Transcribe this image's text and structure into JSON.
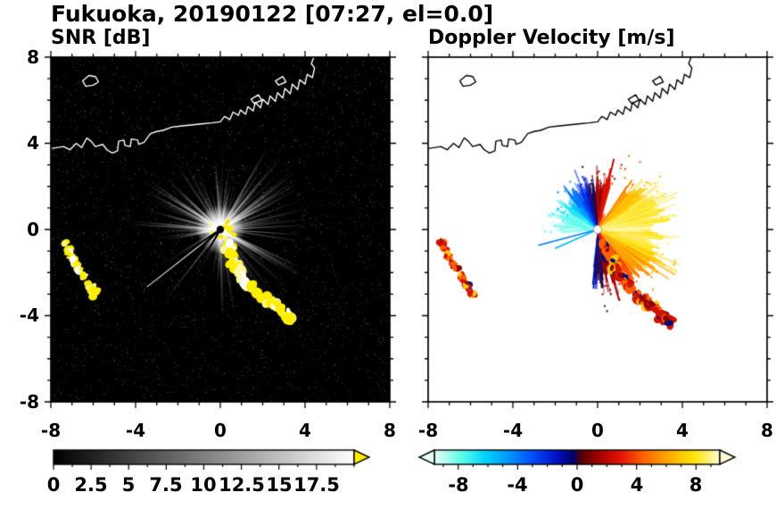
{
  "header": {
    "title": "Fukuoka, 20190122 [07:27, el=0.0]"
  },
  "panels": {
    "snr": {
      "title": "SNR [dB]"
    },
    "velocity": {
      "title": "Doppler Velocity [m/s]"
    }
  },
  "axes": {
    "xlim": [
      -8,
      8
    ],
    "ylim": [
      -8,
      8
    ],
    "xticks": [
      "-8",
      "-4",
      "0",
      "4",
      "8"
    ],
    "yticks": [
      "8",
      "4",
      "0",
      "-4",
      "-8"
    ],
    "minor_step": 1,
    "major_step": 4
  },
  "colorbars": {
    "snr": {
      "min": 0,
      "max": 20,
      "minor_step": 1.25,
      "ticks": [
        "0",
        "2.5",
        "5",
        "7.5",
        "10",
        "12.5",
        "15",
        "17.5"
      ],
      "tick_values": [
        0,
        2.5,
        5,
        7.5,
        10,
        12.5,
        15,
        17.5
      ],
      "over_color": "#ffee00",
      "stops": [
        [
          0,
          "#000000"
        ],
        [
          20,
          "#ffffff"
        ]
      ]
    },
    "velocity": {
      "min": -9.6,
      "max": 9.6,
      "minor_step": 1,
      "ticks": [
        "-8",
        "-4",
        "0",
        "4",
        "8"
      ],
      "tick_values": [
        -8,
        -4,
        0,
        4,
        8
      ],
      "stops": [
        [
          -9.6,
          "#e6fffa"
        ],
        [
          -7.8,
          "#5cffe8"
        ],
        [
          -6.2,
          "#00d2ff"
        ],
        [
          -4.6,
          "#0096ff"
        ],
        [
          -3.0,
          "#004cff"
        ],
        [
          -1.5,
          "#0014cc"
        ],
        [
          -0.25,
          "#000066"
        ],
        [
          0.25,
          "#550000"
        ],
        [
          1.5,
          "#a80000"
        ],
        [
          3.0,
          "#e81600"
        ],
        [
          4.6,
          "#ff6a00"
        ],
        [
          6.2,
          "#ffae00"
        ],
        [
          7.8,
          "#ffe400"
        ],
        [
          9.6,
          "#fffbd8"
        ]
      ]
    }
  },
  "coastline": {
    "main": [
      [
        -8.05,
        3.75
      ],
      [
        -7.4,
        3.85
      ],
      [
        -7.1,
        3.7
      ],
      [
        -6.8,
        4.0
      ],
      [
        -6.55,
        3.8
      ],
      [
        -6.3,
        4.25
      ],
      [
        -6.1,
        4.1
      ],
      [
        -5.9,
        3.85
      ],
      [
        -5.55,
        3.95
      ],
      [
        -5.35,
        3.7
      ],
      [
        -5.1,
        3.55
      ],
      [
        -4.85,
        3.65
      ],
      [
        -4.8,
        4.1
      ],
      [
        -4.55,
        4.15
      ],
      [
        -4.5,
        3.9
      ],
      [
        -4.25,
        3.85
      ],
      [
        -4.2,
        4.2
      ],
      [
        -3.9,
        4.15
      ],
      [
        -3.85,
        3.95
      ],
      [
        -3.6,
        4.05
      ],
      [
        -3.3,
        4.45
      ],
      [
        -3.0,
        4.55
      ],
      [
        -2.7,
        4.6
      ],
      [
        -2.3,
        4.75
      ],
      [
        -1.9,
        4.8
      ],
      [
        -1.4,
        4.85
      ],
      [
        -0.9,
        4.9
      ],
      [
        -0.4,
        4.95
      ],
      [
        0.0,
        5.0
      ],
      [
        0.2,
        5.25
      ],
      [
        0.45,
        5.1
      ],
      [
        0.6,
        5.45
      ],
      [
        0.85,
        5.3
      ],
      [
        0.95,
        5.55
      ],
      [
        1.2,
        5.35
      ],
      [
        1.3,
        5.7
      ],
      [
        1.55,
        5.5
      ],
      [
        1.65,
        5.9
      ],
      [
        1.9,
        5.65
      ],
      [
        2.0,
        6.05
      ],
      [
        2.25,
        5.8
      ],
      [
        2.35,
        6.2
      ],
      [
        2.6,
        5.95
      ],
      [
        2.7,
        6.35
      ],
      [
        2.95,
        6.1
      ],
      [
        3.05,
        6.55
      ],
      [
        3.3,
        6.3
      ],
      [
        3.4,
        6.75
      ],
      [
        3.65,
        6.5
      ],
      [
        3.75,
        6.95
      ],
      [
        4.0,
        6.75
      ],
      [
        4.1,
        7.2
      ],
      [
        4.35,
        7.05
      ],
      [
        4.45,
        7.5
      ],
      [
        4.3,
        7.7
      ],
      [
        4.45,
        8.1
      ]
    ],
    "island": [
      [
        -6.5,
        6.9
      ],
      [
        -6.2,
        7.15
      ],
      [
        -5.9,
        7.1
      ],
      [
        -5.75,
        6.85
      ],
      [
        -6.0,
        6.7
      ],
      [
        -6.35,
        6.65
      ]
    ],
    "structures": [
      [
        [
          1.45,
          6.05
        ],
        [
          1.8,
          6.25
        ],
        [
          1.95,
          6.0
        ],
        [
          1.6,
          5.85
        ]
      ],
      [
        [
          2.6,
          6.9
        ],
        [
          2.95,
          7.1
        ],
        [
          3.1,
          6.85
        ],
        [
          2.75,
          6.7
        ]
      ]
    ]
  },
  "chart_data": [
    {
      "type": "heatmap",
      "title": "SNR [dB]",
      "xlabel": "",
      "ylabel": "",
      "xlim": [
        -8,
        8
      ],
      "ylim": [
        -8,
        8
      ],
      "background": "#000000",
      "coast_color": "#ffffff",
      "radar_site": [
        0,
        0
      ],
      "clutter_rays": {
        "count": 230,
        "min_len": 1.2,
        "max_len": 4.6,
        "shadow_angles": [
          214,
          222,
          240
        ]
      },
      "echo_arc": [
        [
          0.35,
          -0.85
        ],
        [
          0.7,
          -1.5
        ],
        [
          1.05,
          -2.15
        ],
        [
          1.5,
          -2.75
        ],
        [
          2.1,
          -3.25
        ],
        [
          2.6,
          -3.55
        ],
        [
          3.0,
          -3.95
        ],
        [
          3.35,
          -4.3
        ]
      ],
      "west_echoes": [
        [
          -7.35,
          -0.65
        ],
        [
          -7.05,
          -1.25
        ],
        [
          -6.7,
          -1.75
        ],
        [
          -6.25,
          -2.55
        ],
        [
          -5.95,
          -3.0
        ]
      ],
      "echo_color": "#ffee00",
      "colorbar_range": [
        0,
        17.5
      ]
    },
    {
      "type": "heatmap",
      "title": "Doppler Velocity [m/s]",
      "xlabel": "",
      "ylabel": "",
      "xlim": [
        -8,
        8
      ],
      "ylim": [
        -8,
        8
      ],
      "background": "#ffffff",
      "coast_color": "#000000",
      "radar_site": [
        0,
        0
      ],
      "fan": {
        "theta_start": -96,
        "theta_end": 186,
        "flow_dir": 5,
        "vmax": 8.6,
        "base_r": 1.6,
        "spike_r": 1.5,
        "shape_amp": 0.3,
        "shape_dir": 0,
        "notch": [
          56,
          74
        ]
      },
      "thin_rays": [
        {
          "angle": 195,
          "len": 2.9,
          "v": -4
        },
        {
          "angle": 204,
          "len": 2.2,
          "v": -5.5
        }
      ],
      "echo_arc": [
        [
          0.35,
          -0.85
        ],
        [
          0.7,
          -1.5
        ],
        [
          1.05,
          -2.15
        ],
        [
          1.5,
          -2.75
        ],
        [
          2.1,
          -3.25
        ],
        [
          2.6,
          -3.55
        ],
        [
          3.0,
          -3.95
        ],
        [
          3.35,
          -4.3
        ]
      ],
      "west_echoes": [
        [
          -7.35,
          -0.65
        ],
        [
          -7.05,
          -1.25
        ],
        [
          -6.7,
          -1.75
        ],
        [
          -6.25,
          -2.55
        ],
        [
          -5.95,
          -3.0
        ]
      ],
      "colorbar_range": [
        -9.6,
        9.6
      ]
    }
  ]
}
